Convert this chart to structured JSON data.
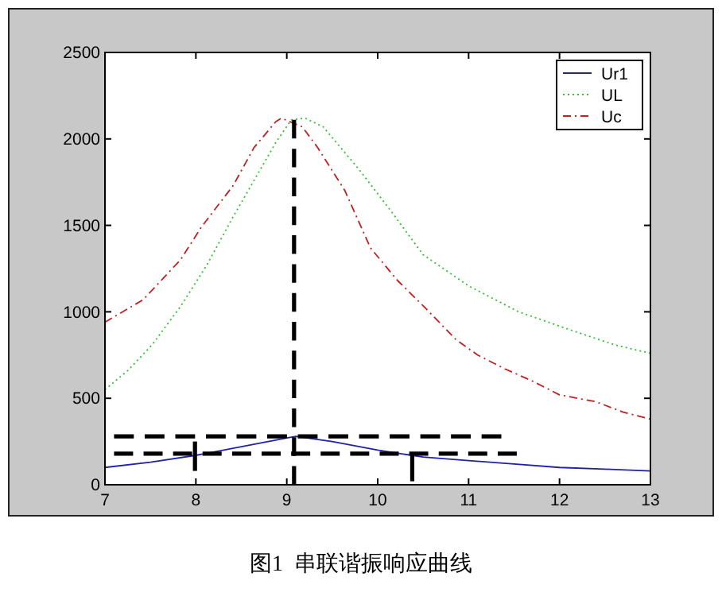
{
  "chart_data": {
    "type": "line",
    "annotations": [
      "图1  串联谐振响应曲线"
    ],
    "xlim": [
      7,
      13
    ],
    "xticks": [
      7,
      8,
      9,
      10,
      11,
      12,
      13
    ],
    "ylim": [
      0,
      2500
    ],
    "yticks": [
      0,
      500,
      1000,
      1500,
      2000,
      2500
    ],
    "legend": "top right",
    "grid": false,
    "marker": "none",
    "series": [
      {
        "name": "Ur1",
        "color": "#2020b0",
        "line_style": "solid",
        "x": [
          7,
          7.5,
          8,
          8.5,
          9,
          9.1,
          9.5,
          10,
          10.5,
          11,
          11.5,
          12,
          12.5,
          13
        ],
        "values": [
          100,
          130,
          170,
          220,
          270,
          280,
          250,
          200,
          160,
          140,
          120,
          100,
          90,
          80
        ]
      },
      {
        "name": "UL",
        "color": "#30c030",
        "line_style": "dotted",
        "x": [
          7,
          7.25,
          7.52,
          7.83,
          8.12,
          8.41,
          8.64,
          8.88,
          9.05,
          9.2,
          9.4,
          9.8,
          10.15,
          10.5,
          11,
          11.55,
          12.15,
          12.6,
          13
        ],
        "values": [
          550,
          660,
          810,
          1030,
          1270,
          1550,
          1760,
          1980,
          2110,
          2120,
          2070,
          1820,
          1580,
          1330,
          1150,
          1000,
          890,
          810,
          760
        ]
      },
      {
        "name": "Uc",
        "color": "#c02020",
        "line_style": "dashdot",
        "x": [
          7,
          7.42,
          7.83,
          8.06,
          8.41,
          8.64,
          8.88,
          8.94,
          9.17,
          9.34,
          9.64,
          9.92,
          10.22,
          10.51,
          10.86,
          11.1,
          11.4,
          11.7,
          12,
          12.4,
          12.7,
          13
        ],
        "values": [
          940,
          1070,
          1300,
          1490,
          1730,
          1950,
          2100,
          2120,
          2070,
          1950,
          1700,
          1370,
          1180,
          1030,
          840,
          750,
          670,
          600,
          520,
          480,
          420,
          380
        ]
      },
      {
        "color": "#000000",
        "line_style": "dashed",
        "x": [
          9.08,
          9.08
        ],
        "values": [
          0,
          2110
        ]
      },
      {
        "color": "#000000",
        "line_style": "dashed",
        "x": [
          7.1,
          11.36
        ],
        "values": [
          280,
          280
        ]
      },
      {
        "color": "#000000",
        "line_style": "dashed",
        "x": [
          7.1,
          11.53
        ],
        "values": [
          180,
          180
        ]
      },
      {
        "color": "#000000",
        "line_style": "solid",
        "x": [
          7.99,
          7.99
        ],
        "values": [
          80,
          250
        ]
      },
      {
        "color": "#000000",
        "line_style": "solid",
        "x": [
          10.38,
          10.38
        ],
        "values": [
          20,
          180
        ]
      }
    ]
  }
}
